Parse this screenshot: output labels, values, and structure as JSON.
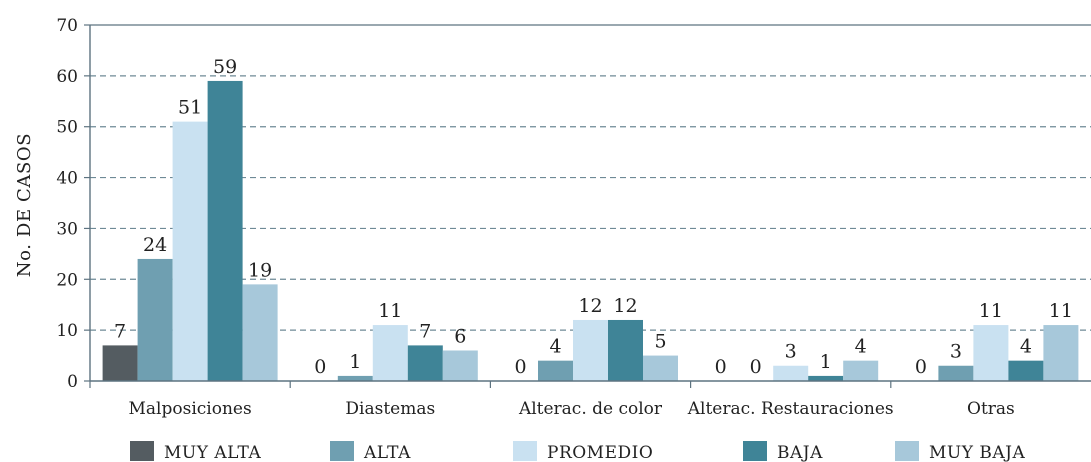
{
  "chart_data": {
    "type": "bar",
    "title": "",
    "xlabel": "",
    "ylabel": "No. DE CASOS",
    "ylim": [
      0,
      70
    ],
    "yticks": [
      0,
      10,
      20,
      30,
      40,
      50,
      60,
      70
    ],
    "grid": true,
    "legend_position": "bottom",
    "categories": [
      "Malposiciones",
      "Diastemas",
      "Alterac. de color",
      "Alterac. Restauraciones",
      "Otras"
    ],
    "series": [
      {
        "name": "MUY ALTA",
        "color": "#545c61",
        "values": [
          7,
          0,
          0,
          0,
          0
        ]
      },
      {
        "name": "ALTA",
        "color": "#6f9fb1",
        "values": [
          24,
          1,
          4,
          0,
          3
        ]
      },
      {
        "name": "PROMEDIO",
        "color": "#c9e1f1",
        "values": [
          51,
          11,
          12,
          3,
          11
        ]
      },
      {
        "name": "BAJA",
        "color": "#3f8497",
        "values": [
          59,
          7,
          12,
          1,
          4
        ]
      },
      {
        "name": "MUY BAJA",
        "color": "#a7c8da",
        "values": [
          19,
          6,
          5,
          4,
          11
        ]
      }
    ]
  }
}
